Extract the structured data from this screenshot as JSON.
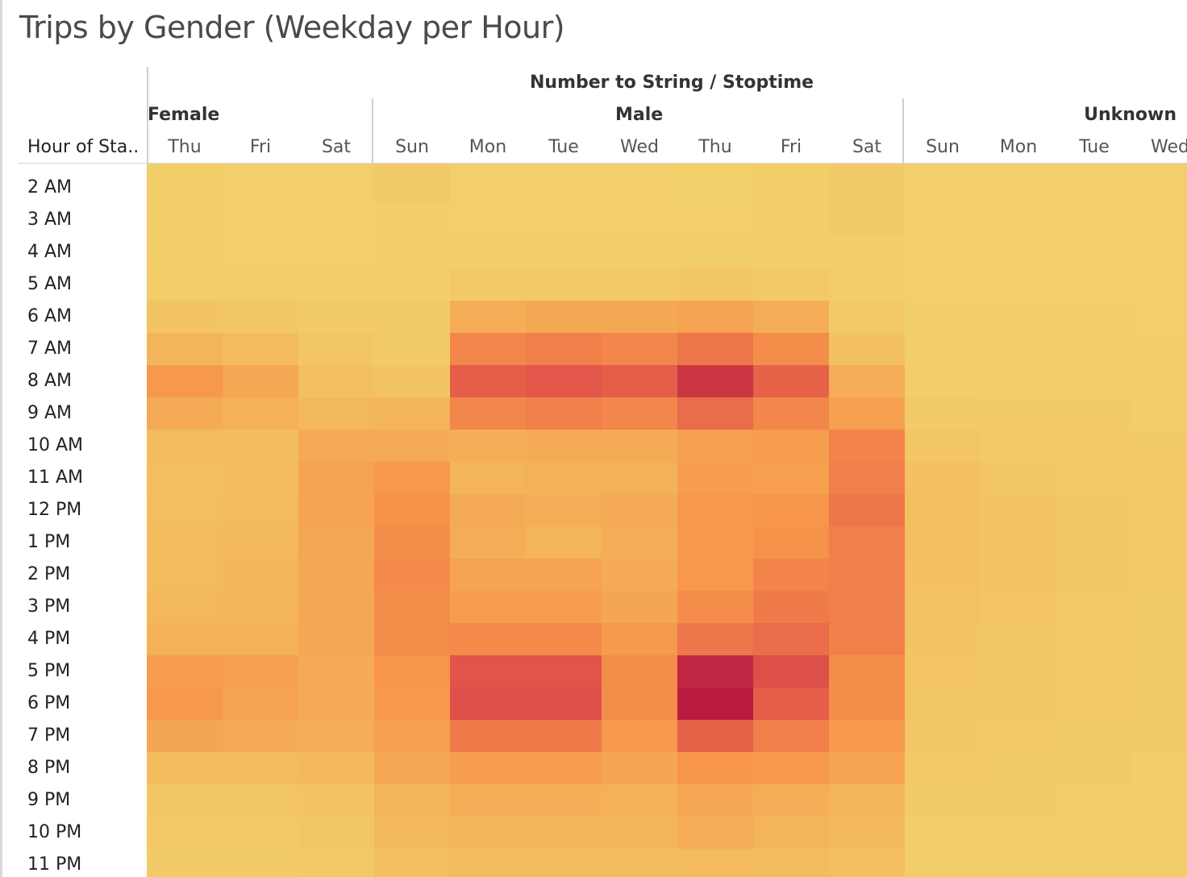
{
  "title": "Trips by Gender (Weekday per Hour)",
  "header": {
    "top_label": "Number to String / Stoptime",
    "row_header": "Hour of Sta..",
    "groups": [
      "Female",
      "Male",
      "Unknown"
    ]
  },
  "chart_data": {
    "type": "heatmap",
    "title": "Trips by Gender (Weekday per Hour)",
    "column_field": "Number to String / Stoptime",
    "row_field": "Hour of Sta..",
    "columns": [
      {
        "group": "Female",
        "day": "Thu"
      },
      {
        "group": "Female",
        "day": "Fri"
      },
      {
        "group": "Female",
        "day": "Sat"
      },
      {
        "group": "Male",
        "day": "Sun"
      },
      {
        "group": "Male",
        "day": "Mon"
      },
      {
        "group": "Male",
        "day": "Tue"
      },
      {
        "group": "Male",
        "day": "Wed"
      },
      {
        "group": "Male",
        "day": "Thu"
      },
      {
        "group": "Male",
        "day": "Fri"
      },
      {
        "group": "Male",
        "day": "Sat"
      },
      {
        "group": "Unknown",
        "day": "Sun"
      },
      {
        "group": "Unknown",
        "day": "Mon"
      },
      {
        "group": "Unknown",
        "day": "Tue"
      },
      {
        "group": "Unknown",
        "day": "Wed"
      }
    ],
    "rows": [
      "2 AM",
      "3 AM",
      "4 AM",
      "5 AM",
      "6 AM",
      "7 AM",
      "8 AM",
      "9 AM",
      "10 AM",
      "11 AM",
      "12 PM",
      "1 PM",
      "2 PM",
      "3 PM",
      "4 PM",
      "5 PM",
      "6 PM",
      "7 PM",
      "8 PM",
      "9 PM",
      "10 PM",
      "11 PM"
    ],
    "intensity_scale": [
      0,
      1
    ],
    "color_scale": [
      "#f2d16b",
      "#f4b55a",
      "#f7924a",
      "#e2574a",
      "#b5173e"
    ],
    "values": [
      [
        0.03,
        0.02,
        0.02,
        0.05,
        0.02,
        0.02,
        0.02,
        0.01,
        0.03,
        0.06,
        0.02,
        0.02,
        0.02,
        0.02
      ],
      [
        0.03,
        0.02,
        0.02,
        0.04,
        0.02,
        0.02,
        0.02,
        0.02,
        0.03,
        0.05,
        0.02,
        0.02,
        0.02,
        0.02
      ],
      [
        0.03,
        0.02,
        0.02,
        0.04,
        0.03,
        0.03,
        0.03,
        0.03,
        0.04,
        0.04,
        0.02,
        0.02,
        0.02,
        0.02
      ],
      [
        0.04,
        0.04,
        0.03,
        0.03,
        0.07,
        0.07,
        0.07,
        0.09,
        0.07,
        0.04,
        0.02,
        0.02,
        0.02,
        0.02
      ],
      [
        0.12,
        0.09,
        0.05,
        0.05,
        0.3,
        0.34,
        0.34,
        0.38,
        0.3,
        0.07,
        0.03,
        0.03,
        0.03,
        0.02
      ],
      [
        0.25,
        0.2,
        0.1,
        0.06,
        0.55,
        0.58,
        0.55,
        0.62,
        0.52,
        0.14,
        0.03,
        0.03,
        0.03,
        0.03
      ],
      [
        0.45,
        0.35,
        0.15,
        0.12,
        0.72,
        0.75,
        0.72,
        0.88,
        0.7,
        0.3,
        0.04,
        0.04,
        0.04,
        0.03
      ],
      [
        0.33,
        0.28,
        0.22,
        0.25,
        0.55,
        0.58,
        0.55,
        0.66,
        0.55,
        0.4,
        0.06,
        0.05,
        0.05,
        0.04
      ],
      [
        0.18,
        0.18,
        0.33,
        0.33,
        0.3,
        0.33,
        0.33,
        0.4,
        0.42,
        0.56,
        0.1,
        0.08,
        0.07,
        0.06
      ],
      [
        0.16,
        0.18,
        0.38,
        0.45,
        0.26,
        0.28,
        0.28,
        0.42,
        0.4,
        0.58,
        0.14,
        0.1,
        0.08,
        0.07
      ],
      [
        0.17,
        0.2,
        0.38,
        0.5,
        0.32,
        0.3,
        0.32,
        0.46,
        0.48,
        0.62,
        0.15,
        0.12,
        0.09,
        0.08
      ],
      [
        0.2,
        0.22,
        0.34,
        0.52,
        0.3,
        0.26,
        0.3,
        0.46,
        0.5,
        0.58,
        0.15,
        0.12,
        0.09,
        0.08
      ],
      [
        0.2,
        0.24,
        0.34,
        0.53,
        0.38,
        0.38,
        0.32,
        0.46,
        0.56,
        0.58,
        0.14,
        0.12,
        0.09,
        0.08
      ],
      [
        0.22,
        0.26,
        0.35,
        0.52,
        0.42,
        0.42,
        0.36,
        0.52,
        0.6,
        0.58,
        0.13,
        0.11,
        0.08,
        0.06
      ],
      [
        0.28,
        0.28,
        0.34,
        0.52,
        0.54,
        0.54,
        0.44,
        0.62,
        0.66,
        0.58,
        0.12,
        0.1,
        0.08,
        0.06
      ],
      [
        0.42,
        0.4,
        0.32,
        0.48,
        0.76,
        0.76,
        0.52,
        0.94,
        0.78,
        0.52,
        0.11,
        0.1,
        0.07,
        0.06
      ],
      [
        0.45,
        0.38,
        0.32,
        0.45,
        0.78,
        0.78,
        0.52,
        0.98,
        0.72,
        0.52,
        0.1,
        0.09,
        0.07,
        0.06
      ],
      [
        0.36,
        0.32,
        0.3,
        0.4,
        0.6,
        0.6,
        0.45,
        0.7,
        0.58,
        0.46,
        0.09,
        0.08,
        0.06,
        0.05
      ],
      [
        0.2,
        0.2,
        0.22,
        0.35,
        0.42,
        0.42,
        0.36,
        0.48,
        0.45,
        0.38,
        0.07,
        0.06,
        0.05,
        0.04
      ],
      [
        0.1,
        0.1,
        0.12,
        0.25,
        0.3,
        0.3,
        0.28,
        0.35,
        0.3,
        0.25,
        0.05,
        0.05,
        0.04,
        0.04
      ],
      [
        0.08,
        0.08,
        0.1,
        0.22,
        0.26,
        0.26,
        0.25,
        0.3,
        0.26,
        0.22,
        0.04,
        0.04,
        0.03,
        0.03
      ],
      [
        0.05,
        0.05,
        0.07,
        0.15,
        0.18,
        0.18,
        0.18,
        0.2,
        0.18,
        0.16,
        0.03,
        0.03,
        0.03,
        0.03
      ]
    ]
  }
}
